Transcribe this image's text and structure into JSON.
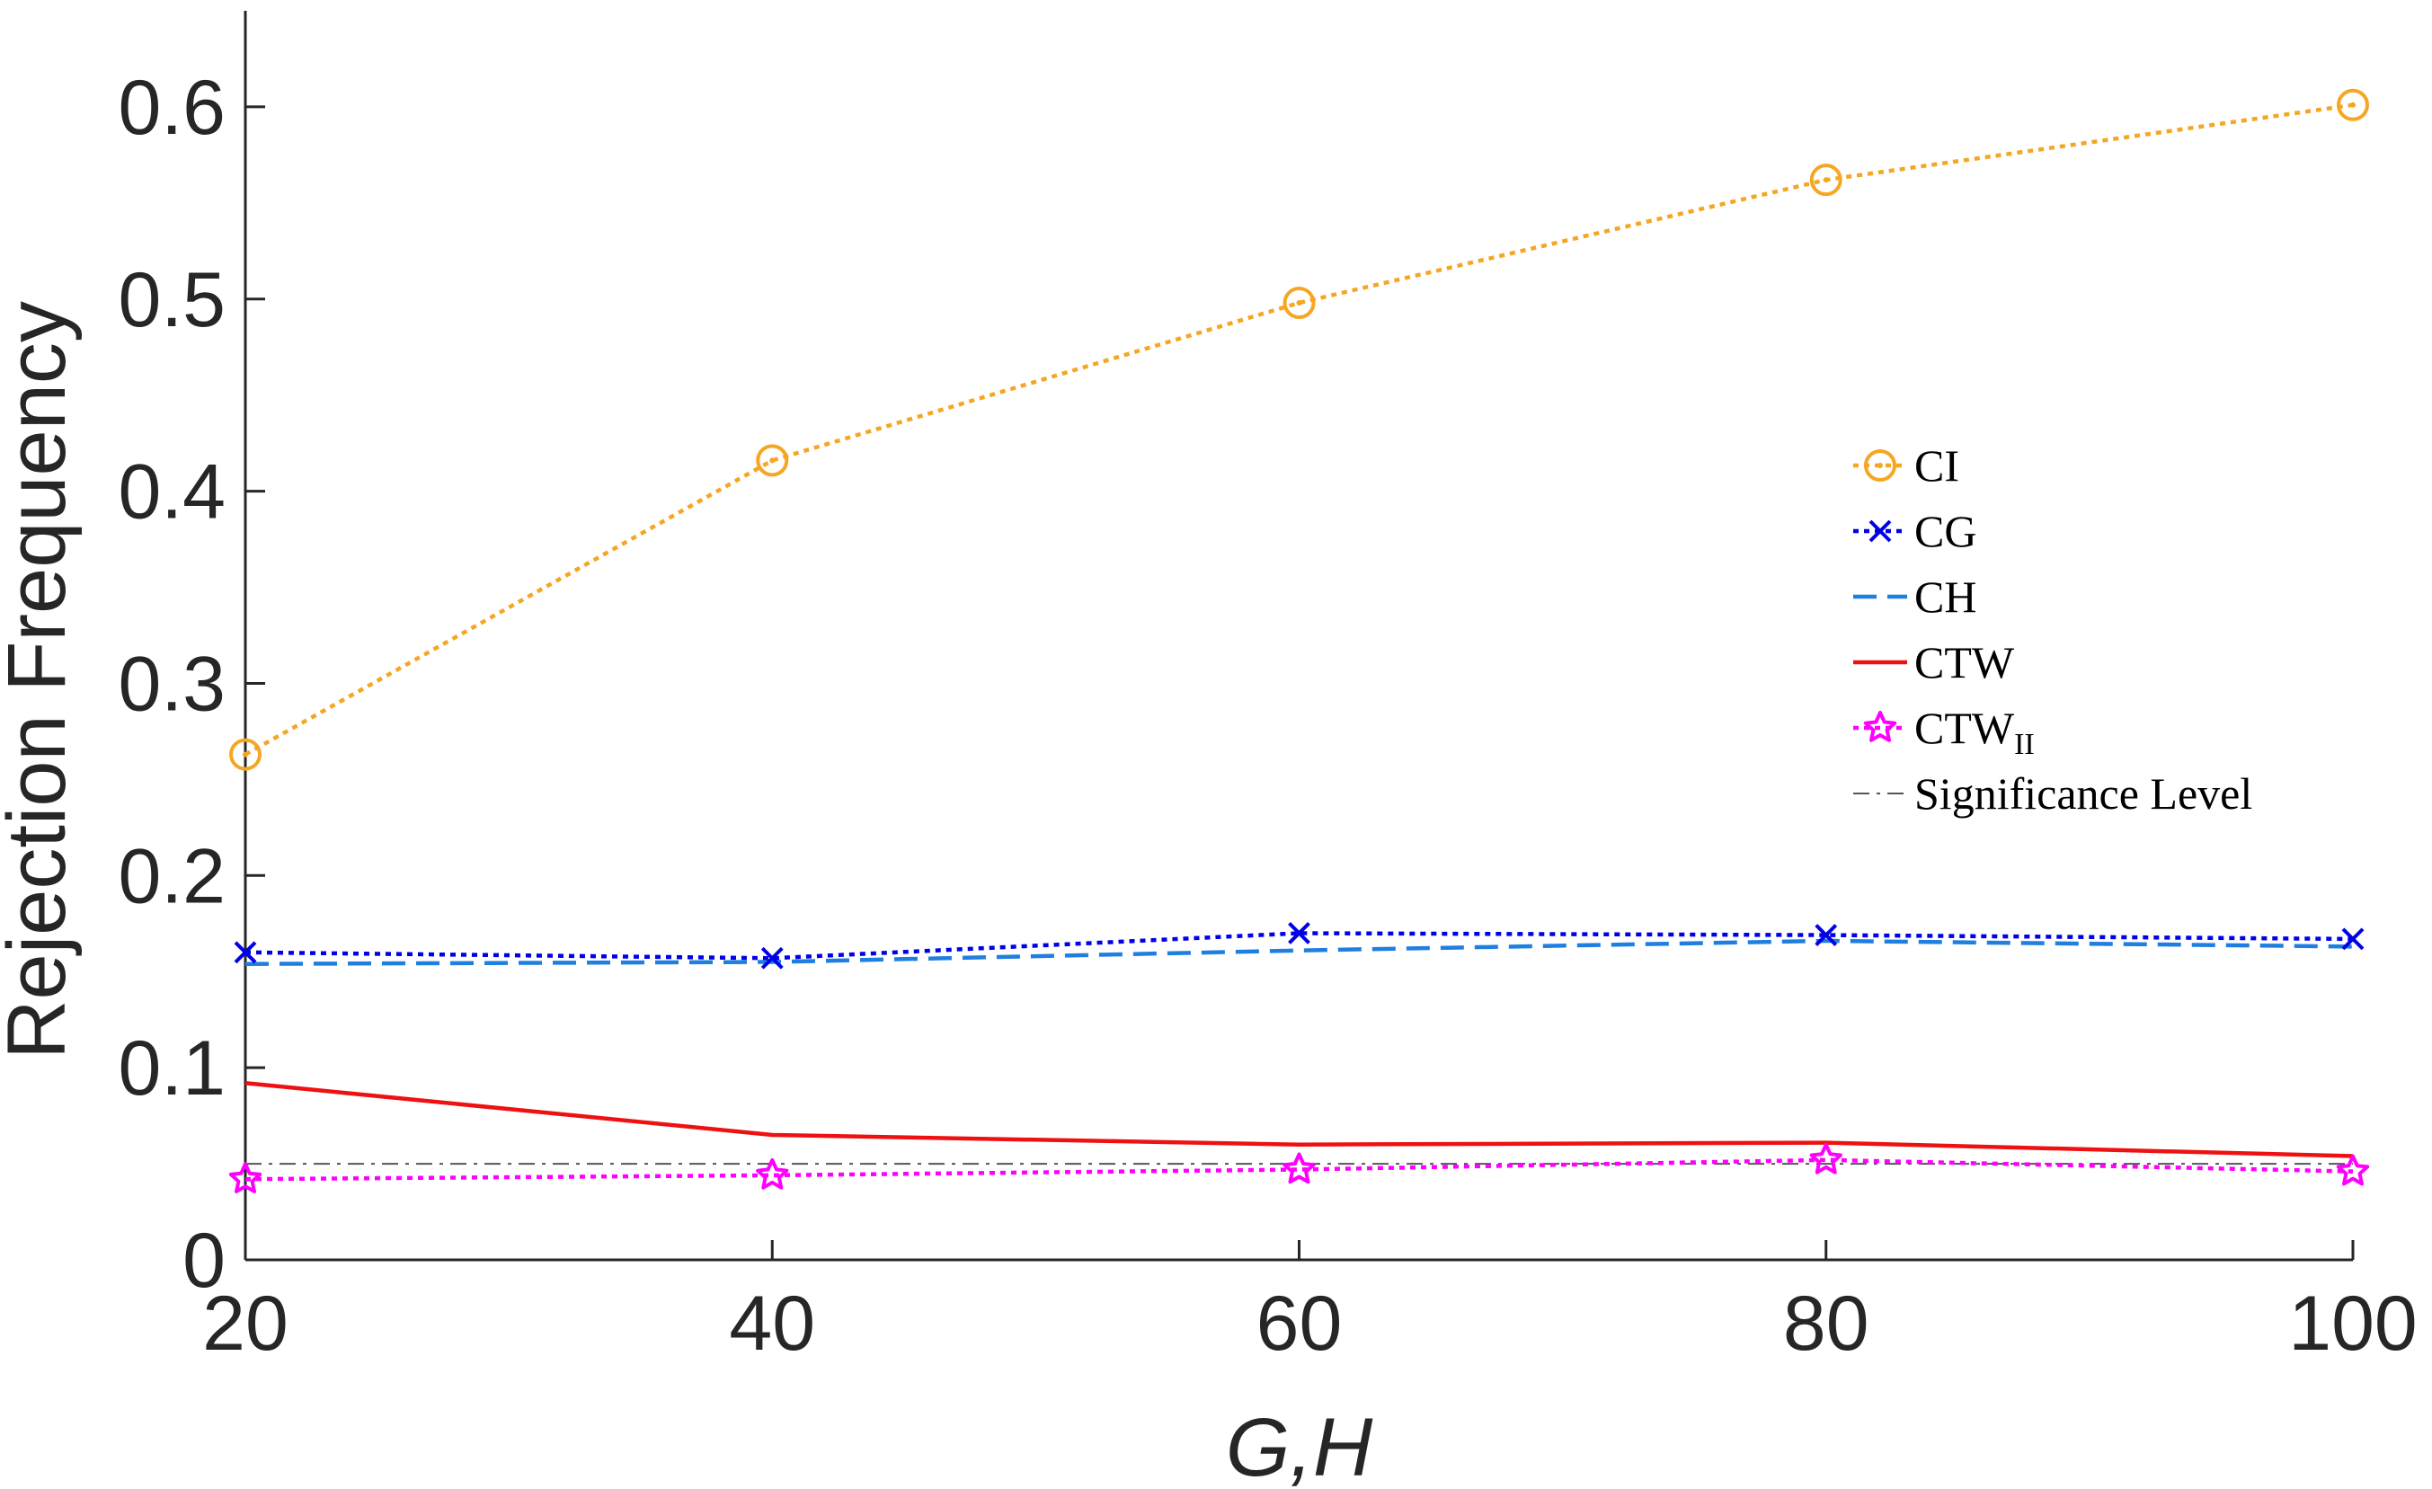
{
  "chart_data": {
    "type": "line",
    "title": "",
    "xlabel": "G,H",
    "ylabel": "Rejection Frequency",
    "x": [
      20,
      40,
      60,
      80,
      100
    ],
    "xlim": [
      20,
      100
    ],
    "ylim": [
      0,
      0.65
    ],
    "xticks": [
      20,
      40,
      60,
      80,
      100
    ],
    "yticks": [
      0,
      0.1,
      0.2,
      0.3,
      0.4,
      0.5,
      0.6
    ],
    "xtick_labels": [
      "20",
      "40",
      "60",
      "80",
      "100"
    ],
    "ytick_labels": [
      "0",
      "0.1",
      "0.2",
      "0.3",
      "0.4",
      "0.5",
      "0.6"
    ],
    "grid": false,
    "legend_position": "right",
    "series": [
      {
        "name": "CI",
        "values": [
          0.263,
          0.416,
          0.498,
          0.562,
          0.601
        ],
        "color": "#f5a623",
        "dash": "dotted",
        "marker": "circle"
      },
      {
        "name": "CG",
        "values": [
          0.16,
          0.157,
          0.17,
          0.169,
          0.167
        ],
        "color": "#0000e6",
        "dash": "dotted",
        "marker": "x"
      },
      {
        "name": "CH",
        "values": [
          0.154,
          0.155,
          0.161,
          0.166,
          0.163
        ],
        "color": "#1f7fe0",
        "dash": "dashed",
        "marker": "none"
      },
      {
        "name": "CTW",
        "values": [
          0.092,
          0.065,
          0.06,
          0.061,
          0.054
        ],
        "color": "#ee1111",
        "dash": "solid",
        "marker": "none"
      },
      {
        "name": "CTW",
        "name_subscript": "II",
        "values": [
          0.042,
          0.044,
          0.047,
          0.052,
          0.046
        ],
        "color": "#ff00ff",
        "dash": "dotted",
        "marker": "star"
      },
      {
        "name": "Significance Level",
        "values": [
          0.05,
          0.05,
          0.05,
          0.05,
          0.05
        ],
        "color": "#555555",
        "dash": "dashdot",
        "marker": "none"
      }
    ]
  }
}
